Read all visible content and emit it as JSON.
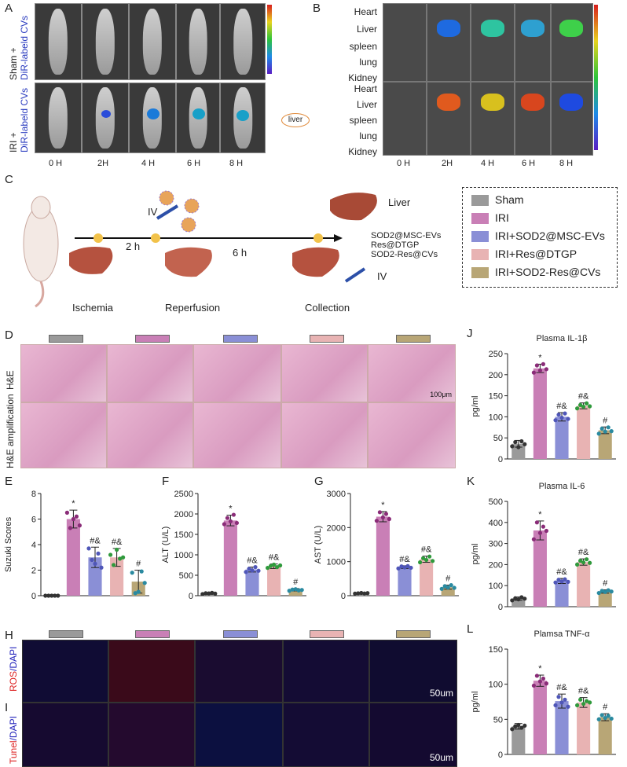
{
  "panels": {
    "A": "A",
    "B": "B",
    "C": "C",
    "D": "D",
    "E": "E",
    "F": "F",
    "G": "G",
    "H": "H",
    "I": "I",
    "J": "J",
    "K": "K",
    "L": "L"
  },
  "panelA": {
    "row_labels": [
      {
        "prefix": "Sham + ",
        "suffix": "DiR-labeld CVs"
      },
      {
        "prefix": "IRI + ",
        "suffix": "DiR-labeld CVs"
      }
    ],
    "timepoints": [
      "0 H",
      "2H",
      "4 H",
      "6 H",
      "8 H"
    ],
    "liver_tag": "liver"
  },
  "panelB": {
    "organs": [
      "Heart",
      "Liver",
      "spleen",
      "lung",
      "Kidney"
    ],
    "timepoints": [
      "0 H",
      "2H",
      "4 H",
      "6 H",
      "8 H"
    ]
  },
  "panelC": {
    "steps": [
      "Ischemia",
      "Reperfusion",
      "Collection"
    ],
    "durations": [
      "2 h",
      "6 h"
    ],
    "iv": [
      "IV",
      "IV"
    ],
    "liver_label": "Liver",
    "treatments": [
      "SOD2@MSC-EVs",
      "Res@DTGP",
      "SOD2-Res@CVs"
    ],
    "legend": [
      {
        "label": "Sham",
        "color": "#9a9a9a"
      },
      {
        "label": "IRI",
        "color": "#c97fb6"
      },
      {
        "label": "IRI+SOD2@MSC-EVs",
        "color": "#8a8fd6"
      },
      {
        "label": "IRI+Res@DTGP",
        "color": "#e8b3b3"
      },
      {
        "label": "IRI+SOD2-Res@CVs",
        "color": "#b8a676"
      }
    ]
  },
  "panelD": {
    "row1": "H&E",
    "row2": "H&E amplification",
    "scale": "100μm"
  },
  "panelH": {
    "row_label_red": "ROS",
    "row_label_blue": "/DAPI",
    "scale": "50um"
  },
  "panelI": {
    "row_label_red": "Tunel",
    "row_label_blue": "/DAPI",
    "scale": "50um"
  },
  "chart_data": [
    {
      "id": "E",
      "type": "bar",
      "title": "",
      "ylabel": "Suzuki Scores",
      "ylim": [
        0,
        8
      ],
      "yticks": [
        0,
        2,
        4,
        6,
        8
      ],
      "values": [
        0,
        6.0,
        3.0,
        3.0,
        1.1
      ],
      "errors": [
        0,
        0.7,
        0.8,
        0.7,
        0.9
      ],
      "annotations": [
        "",
        "*",
        "#&",
        "#&",
        "#"
      ],
      "points": [
        [
          0,
          0,
          0,
          0,
          0
        ],
        [
          6.5,
          5.3,
          6.0,
          6.2,
          5.5
        ],
        [
          3.7,
          2.8,
          2.5,
          3.3,
          2.2
        ],
        [
          3.2,
          2.4,
          3.6,
          2.9,
          3.0
        ],
        [
          1.8,
          0.2,
          0.3,
          1.9,
          1.0
        ]
      ]
    },
    {
      "id": "F",
      "type": "bar",
      "title": "",
      "ylabel": "ALT (U/L)",
      "ylim": [
        0,
        2500
      ],
      "yticks": [
        0,
        500,
        1000,
        1500,
        2000,
        2500
      ],
      "values": [
        55,
        1840,
        640,
        720,
        145
      ],
      "errors": [
        20,
        130,
        60,
        55,
        30
      ],
      "annotations": [
        "",
        "*",
        "#&",
        "#&",
        "#"
      ],
      "points": [
        [
          40,
          60,
          55,
          70,
          50
        ],
        [
          1750,
          1900,
          1820,
          1980,
          1780
        ],
        [
          580,
          660,
          620,
          700,
          610
        ],
        [
          680,
          730,
          760,
          700,
          740
        ],
        [
          120,
          150,
          160,
          130,
          140
        ]
      ]
    },
    {
      "id": "G",
      "type": "bar",
      "title": "",
      "ylabel": "AST (U/L)",
      "ylim": [
        0,
        3000
      ],
      "yticks": [
        0,
        1000,
        2000,
        3000
      ],
      "values": [
        70,
        2320,
        840,
        1070,
        250
      ],
      "errors": [
        15,
        150,
        40,
        90,
        60
      ],
      "annotations": [
        "",
        "*",
        "#&",
        "#&",
        "#"
      ],
      "points": [
        [
          60,
          70,
          80,
          65,
          75
        ],
        [
          2200,
          2450,
          2300,
          2400,
          2250
        ],
        [
          800,
          860,
          830,
          870,
          820
        ],
        [
          980,
          1100,
          1050,
          1150,
          1020
        ],
        [
          200,
          280,
          240,
          310,
          230
        ]
      ]
    },
    {
      "id": "J",
      "type": "bar",
      "title": "Plasma IL-1β",
      "ylabel": "pg/ml",
      "ylim": [
        0,
        250
      ],
      "yticks": [
        0,
        50,
        100,
        150,
        200,
        250
      ],
      "values": [
        36,
        215,
        100,
        126,
        68
      ],
      "errors": [
        8,
        10,
        10,
        7,
        8
      ],
      "annotations": [
        "",
        "*",
        "#&",
        "#&",
        "#"
      ],
      "points": [
        [
          30,
          40,
          28,
          42,
          35
        ],
        [
          205,
          222,
          210,
          225,
          213
        ],
        [
          92,
          105,
          98,
          108,
          95
        ],
        [
          120,
          128,
          124,
          132,
          125
        ],
        [
          60,
          72,
          65,
          75,
          66
        ]
      ]
    },
    {
      "id": "K",
      "type": "bar",
      "title": "Plasma IL-6",
      "ylabel": "pg/ml",
      "ylim": [
        0,
        500
      ],
      "yticks": [
        0,
        100,
        200,
        300,
        400,
        500
      ],
      "values": [
        38,
        362,
        122,
        212,
        72
      ],
      "errors": [
        8,
        45,
        12,
        15,
        8
      ],
      "annotations": [
        "",
        "*",
        "#&",
        "#&",
        "#"
      ],
      "points": [
        [
          30,
          40,
          35,
          45,
          38
        ],
        [
          320,
          400,
          350,
          380,
          360
        ],
        [
          115,
          128,
          120,
          130,
          118
        ],
        [
          200,
          218,
          210,
          225,
          208
        ],
        [
          65,
          75,
          70,
          78,
          72
        ]
      ]
    },
    {
      "id": "L",
      "type": "bar",
      "title": "Plamsa TNF-α",
      "ylabel": "pg/ml",
      "ylim": [
        0,
        150
      ],
      "yticks": [
        0,
        50,
        100,
        150
      ],
      "values": [
        40,
        105,
        76,
        74,
        53
      ],
      "errors": [
        4,
        8,
        10,
        7,
        5
      ],
      "annotations": [
        "",
        "*",
        "#&",
        "#&",
        "#"
      ],
      "points": [
        [
          36,
          40,
          42,
          38,
          41
        ],
        [
          98,
          112,
          104,
          108,
          101
        ],
        [
          70,
          82,
          74,
          78,
          68
        ],
        [
          70,
          78,
          72,
          76,
          74
        ],
        [
          50,
          56,
          52,
          55,
          51
        ]
      ]
    }
  ],
  "colors": [
    "#9a9a9a",
    "#c97fb6",
    "#8a8fd6",
    "#e8b3b3",
    "#b8a676"
  ],
  "point_colors": [
    "#333333",
    "#8a2c78",
    "#4f56b8",
    "#2f9a3c",
    "#2a8aa0"
  ]
}
